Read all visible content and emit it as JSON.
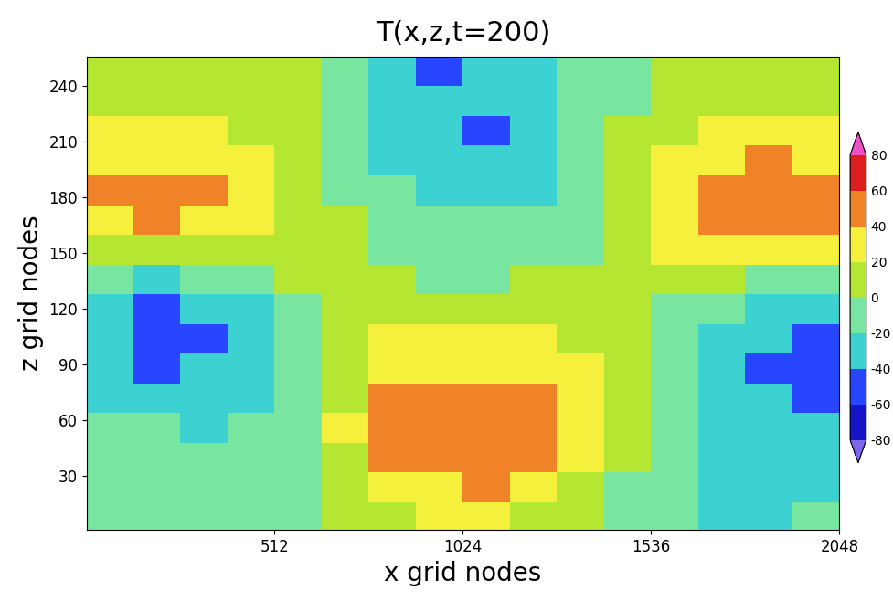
{
  "chart_data": {
    "type": "heatmap",
    "title": "T(x,z,t=200)",
    "x_label": "x grid nodes",
    "y_label": "z grid nodes",
    "x": [
      64,
      192,
      320,
      448,
      576,
      704,
      832,
      960,
      1088,
      1216,
      1344,
      1472,
      1600,
      1728,
      1856,
      1984
    ],
    "y": [
      8,
      24,
      40,
      56,
      72,
      88,
      104,
      120,
      136,
      152,
      168,
      184,
      200,
      216,
      232,
      248
    ],
    "cells": [
      [
        -10,
        -15,
        -10,
        -5,
        -10,
        0,
        10,
        20,
        25,
        15,
        10,
        -10,
        -20,
        -25,
        -30,
        -20
      ],
      [
        -10,
        -5,
        -15,
        -10,
        -5,
        5,
        25,
        35,
        40,
        30,
        15,
        -5,
        -20,
        -25,
        -30,
        -25
      ],
      [
        -5,
        -10,
        -15,
        -10,
        -5,
        15,
        40,
        45,
        50,
        40,
        25,
        0,
        -15,
        -25,
        -30,
        -30
      ],
      [
        -15,
        -20,
        -25,
        -20,
        -10,
        20,
        45,
        50,
        55,
        45,
        30,
        5,
        -15,
        -30,
        -35,
        -35
      ],
      [
        -25,
        -30,
        -35,
        -30,
        -15,
        15,
        40,
        45,
        45,
        40,
        25,
        5,
        -20,
        -35,
        -40,
        -45
      ],
      [
        -35,
        -45,
        -40,
        -35,
        -15,
        10,
        30,
        35,
        30,
        25,
        20,
        0,
        -20,
        -35,
        -45,
        -50
      ],
      [
        -40,
        -50,
        -45,
        -40,
        -20,
        5,
        20,
        25,
        20,
        20,
        10,
        0,
        -15,
        -30,
        -40,
        -45
      ],
      [
        -35,
        -45,
        -40,
        -30,
        -15,
        5,
        10,
        10,
        5,
        5,
        5,
        0,
        -10,
        -20,
        -30,
        -35
      ],
      [
        -20,
        -25,
        -15,
        -10,
        0,
        5,
        0,
        -5,
        -5,
        0,
        0,
        5,
        10,
        5,
        -5,
        -10
      ],
      [
        15,
        10,
        15,
        10,
        5,
        0,
        -10,
        -15,
        -15,
        -10,
        -5,
        10,
        20,
        30,
        35,
        30
      ],
      [
        35,
        40,
        35,
        25,
        15,
        0,
        -15,
        -20,
        -20,
        -15,
        -5,
        10,
        30,
        40,
        45,
        45
      ],
      [
        40,
        45,
        40,
        30,
        15,
        -5,
        -20,
        -25,
        -30,
        -25,
        -10,
        10,
        25,
        40,
        50,
        50
      ],
      [
        35,
        35,
        30,
        20,
        10,
        -5,
        -25,
        -35,
        -40,
        -35,
        -15,
        5,
        20,
        30,
        40,
        35
      ],
      [
        20,
        25,
        20,
        15,
        5,
        -10,
        -30,
        -40,
        -45,
        -35,
        -15,
        0,
        15,
        20,
        25,
        20
      ],
      [
        15,
        15,
        10,
        10,
        0,
        -10,
        -30,
        -40,
        -40,
        -35,
        -20,
        -5,
        10,
        15,
        15,
        10
      ],
      [
        15,
        10,
        10,
        5,
        0,
        -15,
        -30,
        -45,
        -40,
        -30,
        -20,
        -5,
        5,
        10,
        10,
        5
      ]
    ],
    "xlim": [
      1,
      2048
    ],
    "xticks": [
      512,
      1024,
      1536,
      2048
    ],
    "ylim": [
      1,
      256
    ],
    "yticks": [
      30,
      60,
      90,
      120,
      150,
      180,
      210,
      240
    ],
    "colorbar_range": [
      -80,
      80
    ],
    "colorbar_ticks": [
      -80,
      -60,
      -40,
      -20,
      0,
      20,
      40,
      60,
      80
    ],
    "colors": [
      "#7b68ee",
      "#1414c8",
      "#2846ff",
      "#3cd2d2",
      "#78e6a0",
      "#b4e632",
      "#f5f03c",
      "#f08228",
      "#dc1e1e",
      "#f050c8"
    ]
  }
}
